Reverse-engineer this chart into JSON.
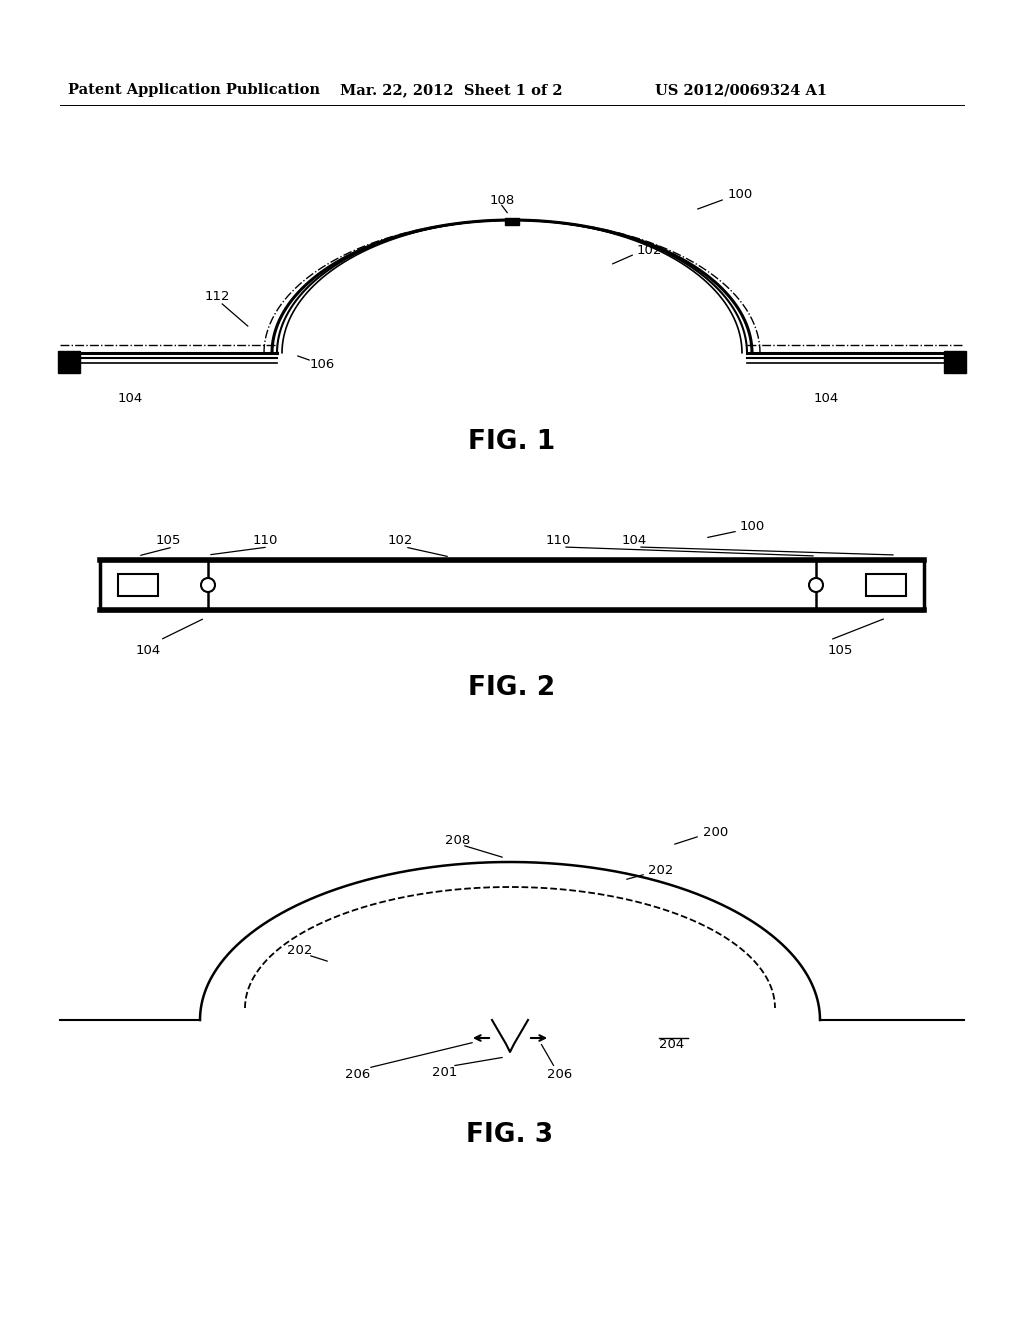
{
  "bg_color": "#ffffff",
  "header_left": "Patent Application Publication",
  "header_mid": "Mar. 22, 2012  Sheet 1 of 2",
  "header_right": "US 2012/0069324 A1",
  "fig1_label": "FIG. 1",
  "fig2_label": "FIG. 2",
  "fig3_label": "FIG. 3"
}
